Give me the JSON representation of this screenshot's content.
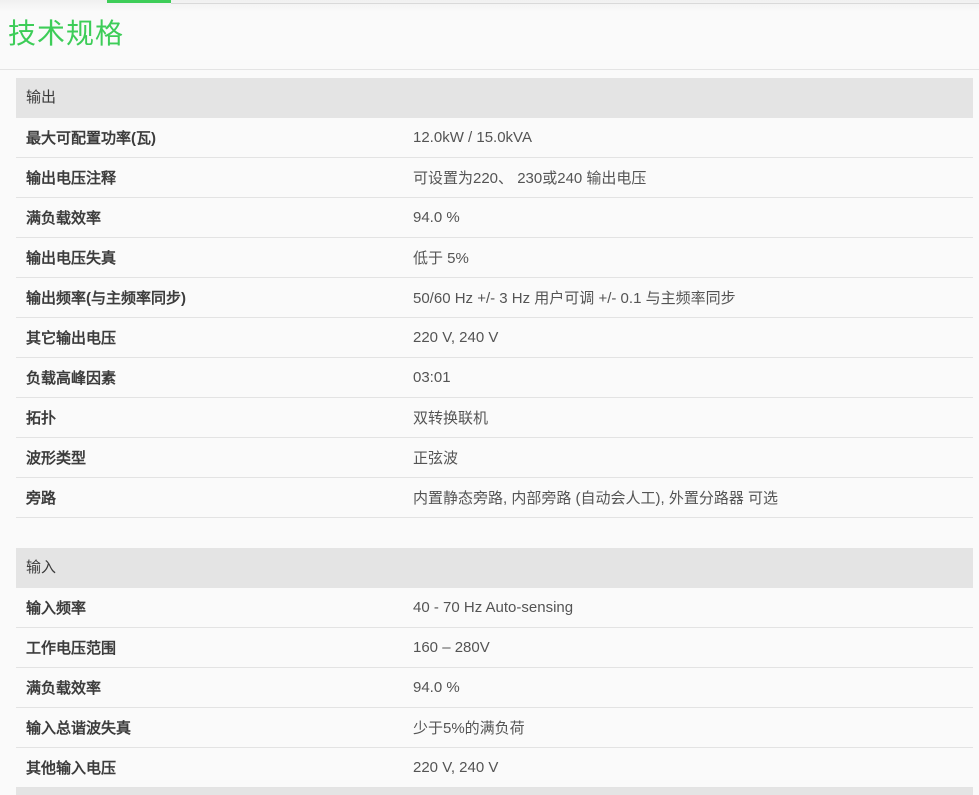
{
  "page": {
    "title": "技术规格",
    "accent_color": "#3dcd58"
  },
  "sections": [
    {
      "title": "输出",
      "rows": [
        {
          "label": "最大可配置功率(瓦)",
          "value": "12.0kW / 15.0kVA"
        },
        {
          "label": "输出电压注释",
          "value": "可设置为220、 230或240 输出电压"
        },
        {
          "label": "满负载效率",
          "value": "94.0 %"
        },
        {
          "label": "输出电压失真",
          "value": "低于 5%"
        },
        {
          "label": "输出频率(与主频率同步)",
          "value": "50/60 Hz +/- 3 Hz 用户可调 +/- 0.1 与主频率同步"
        },
        {
          "label": "其它输出电压",
          "value": "220 V, 240 V"
        },
        {
          "label": "负载高峰因素",
          "value": "03:01"
        },
        {
          "label": "拓扑",
          "value": "双转换联机"
        },
        {
          "label": "波形类型",
          "value": "正弦波"
        },
        {
          "label": "旁路",
          "value": "内置静态旁路, 内部旁路 (自动会人工), 外置分路器 可选"
        }
      ]
    },
    {
      "title": "输入",
      "rows": [
        {
          "label": "输入频率",
          "value": "40 - 70 Hz Auto-sensing"
        },
        {
          "label": "工作电压范围",
          "value": "160 – 280V"
        },
        {
          "label": "满负载效率",
          "value": "94.0 %"
        },
        {
          "label": "输入总谐波失真",
          "value": "少于5%的满负荷"
        },
        {
          "label": "其他输入电压",
          "value": "220 V, 240 V"
        }
      ]
    }
  ]
}
